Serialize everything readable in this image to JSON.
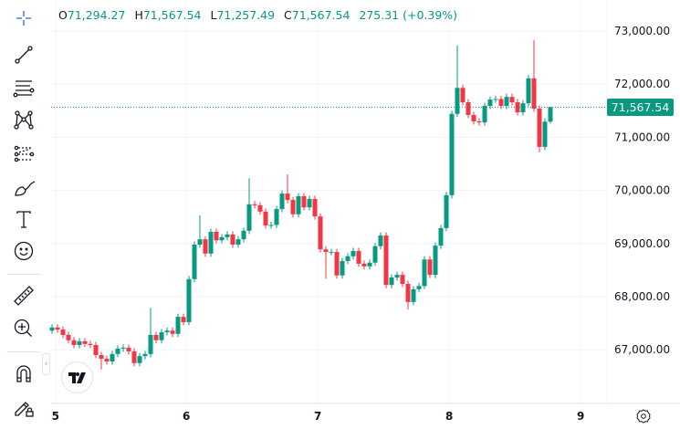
{
  "legend": {
    "o_label": "O",
    "o": "71,294.27",
    "h_label": "H",
    "h": "71,567.54",
    "l_label": "L",
    "l": "71,257.49",
    "c_label": "C",
    "c": "71,567.54",
    "change": "275.31 (+0.39%)"
  },
  "colors": {
    "up": "#089981",
    "down": "#f23645",
    "grid": "#f0f3fa",
    "last_price": "#089981"
  },
  "toolbar": {
    "icons": [
      "crosshair-icon",
      "trend-line-icon",
      "fib-retracement-icon",
      "pattern-icon",
      "prediction-icon",
      "brush-icon",
      "text-icon",
      "emoji-icon",
      "ruler-icon",
      "zoom-in-icon",
      "magnet-icon",
      "lock-drawings-icon"
    ]
  },
  "chart_data": {
    "type": "candlestick",
    "y_ticks": [
      "73,000.00",
      "72,000.00",
      "71,000.00",
      "70,000.00",
      "69,000.00",
      "68,000.00",
      "67,000.00"
    ],
    "y_tick_values": [
      73000,
      72000,
      71000,
      70000,
      69000,
      68000,
      67000
    ],
    "ylim": [
      66520,
      73680
    ],
    "x_ticks": [
      "5",
      "6",
      "7",
      "8",
      "9"
    ],
    "x_tick_index": [
      0.8,
      24.7,
      48.7,
      72.7,
      96.7
    ],
    "last_price": 71567.54,
    "last_price_label": "71,567.54",
    "first_open": 67360,
    "close": [
      67420,
      67380,
      67280,
      67180,
      67090,
      67160,
      67110,
      67090,
      66900,
      66830,
      66780,
      66920,
      67020,
      67040,
      66970,
      66750,
      66880,
      66920,
      67280,
      67180,
      67330,
      67360,
      67300,
      67620,
      67520,
      68330,
      68980,
      69080,
      68810,
      69220,
      69060,
      69120,
      69170,
      68980,
      69080,
      69240,
      69740,
      69720,
      69600,
      69340,
      69350,
      69650,
      69940,
      69820,
      69550,
      69890,
      69680,
      69840,
      69510,
      68890,
      68840,
      68840,
      68400,
      68670,
      68760,
      68860,
      68620,
      68570,
      68640,
      68950,
      69150,
      68220,
      68360,
      68410,
      68240,
      67900,
      68140,
      68200,
      68700,
      68410,
      68960,
      69290,
      69910,
      71440,
      71930,
      71660,
      71420,
      71300,
      71280,
      71590,
      71710,
      71720,
      71590,
      71760,
      71660,
      71470,
      71640,
      72110,
      71540,
      70820,
      71294.27,
      71567.54
    ],
    "last_open": 71294.27,
    "wicks": [
      {
        "i": 9,
        "low": 66630
      },
      {
        "i": 18,
        "high": 67790
      },
      {
        "i": 27,
        "high": 69530
      },
      {
        "i": 36,
        "high": 70230
      },
      {
        "i": 43,
        "high": 70300
      },
      {
        "i": 50,
        "low": 68340
      },
      {
        "i": 65,
        "low": 67760
      },
      {
        "i": 74,
        "high": 72730
      },
      {
        "i": 88,
        "high": 72830
      },
      {
        "i": 89,
        "low": 70720
      },
      {
        "i": 91,
        "high": 71567.54,
        "low": 71257.49
      }
    ]
  }
}
